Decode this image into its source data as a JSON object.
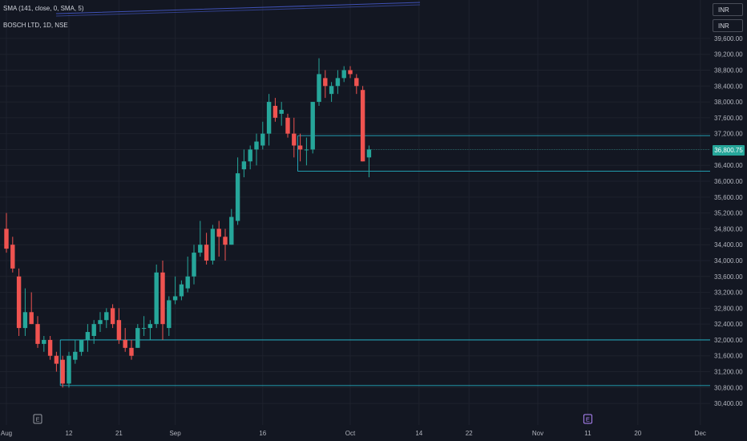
{
  "legend": {
    "sma_text": "SMA (141, close, 0, SMA, 5)",
    "symbol_text": "BOSCH LTD, 1D, NSE"
  },
  "currency_boxes": [
    "INR",
    "INR"
  ],
  "last_price_label": "36,800.75",
  "colors": {
    "background": "#131722",
    "up": "#26a69a",
    "down": "#ef5350",
    "level_lines": "#26c6da",
    "sma_line": "#3f51b5",
    "grid": "#1e222d",
    "event_marker": "#b388ff"
  },
  "chart_data": {
    "type": "candlestick",
    "title": "BOSCH LTD, 1D, NSE",
    "ylim": [
      30200,
      39800
    ],
    "y_ticks": [
      39600,
      39200,
      38800,
      38400,
      38000,
      37600,
      37200,
      36800,
      36400,
      36000,
      35600,
      35200,
      34800,
      34400,
      34000,
      33600,
      33200,
      32800,
      32400,
      32000,
      31600,
      31200,
      30800,
      30400
    ],
    "y_tick_labels": [
      "39,600.00",
      "39,200.00",
      "38,800.00",
      "38,400.00",
      "38,000.00",
      "37,600.00",
      "37,200.00",
      "36,800.00",
      "36,400.00",
      "36,000.00",
      "35,600.00",
      "35,200.00",
      "34,800.00",
      "34,400.00",
      "34,000.00",
      "33,600.00",
      "33,200.00",
      "32,800.00",
      "32,400.00",
      "32,000.00",
      "31,600.00",
      "31,200.00",
      "30,800.00",
      "30,400.00"
    ],
    "x_tick_labels": [
      {
        "label": "Aug",
        "index": 0
      },
      {
        "label": "12",
        "index": 10
      },
      {
        "label": "21",
        "index": 18
      },
      {
        "label": "Sep",
        "index": 27
      },
      {
        "label": "16",
        "index": 41
      },
      {
        "label": "Oct",
        "index": 55
      },
      {
        "label": "14",
        "index": 66
      },
      {
        "label": "22",
        "index": 74
      },
      {
        "label": "Nov",
        "index": 85
      },
      {
        "label": "11",
        "index": 93
      },
      {
        "label": "20",
        "index": 101
      },
      {
        "label": "Dec",
        "index": 111
      }
    ],
    "candles": [
      {
        "o": 34800,
        "h": 35200,
        "l": 34200,
        "c": 34300
      },
      {
        "o": 34400,
        "h": 34600,
        "l": 33700,
        "c": 33800
      },
      {
        "o": 33600,
        "h": 33800,
        "l": 32100,
        "c": 32300
      },
      {
        "o": 32300,
        "h": 33300,
        "l": 32100,
        "c": 32700
      },
      {
        "o": 32700,
        "h": 33200,
        "l": 32400,
        "c": 32400
      },
      {
        "o": 32400,
        "h": 32600,
        "l": 31800,
        "c": 31900
      },
      {
        "o": 31900,
        "h": 32100,
        "l": 31700,
        "c": 32000
      },
      {
        "o": 32000,
        "h": 32100,
        "l": 31500,
        "c": 31600
      },
      {
        "o": 31600,
        "h": 31700,
        "l": 31200,
        "c": 31400
      },
      {
        "o": 31500,
        "h": 31600,
        "l": 30800,
        "c": 30900
      },
      {
        "o": 30900,
        "h": 31700,
        "l": 30800,
        "c": 31600
      },
      {
        "o": 31500,
        "h": 32000,
        "l": 31400,
        "c": 31700
      },
      {
        "o": 31700,
        "h": 32000,
        "l": 31600,
        "c": 32000
      },
      {
        "o": 32000,
        "h": 32400,
        "l": 31700,
        "c": 32200
      },
      {
        "o": 32100,
        "h": 32500,
        "l": 31900,
        "c": 32400
      },
      {
        "o": 32400,
        "h": 32700,
        "l": 32200,
        "c": 32500
      },
      {
        "o": 32500,
        "h": 32800,
        "l": 32300,
        "c": 32700
      },
      {
        "o": 32800,
        "h": 32900,
        "l": 32300,
        "c": 32400
      },
      {
        "o": 32500,
        "h": 32800,
        "l": 31900,
        "c": 32000
      },
      {
        "o": 32000,
        "h": 32300,
        "l": 31700,
        "c": 31800
      },
      {
        "o": 31800,
        "h": 32000,
        "l": 31500,
        "c": 31600
      },
      {
        "o": 31800,
        "h": 32400,
        "l": 31800,
        "c": 32300
      },
      {
        "o": 32300,
        "h": 32600,
        "l": 32100,
        "c": 32300
      },
      {
        "o": 32300,
        "h": 32500,
        "l": 32000,
        "c": 32400
      },
      {
        "o": 32400,
        "h": 33900,
        "l": 32300,
        "c": 33700
      },
      {
        "o": 33700,
        "h": 34000,
        "l": 32000,
        "c": 32400
      },
      {
        "o": 32300,
        "h": 33100,
        "l": 32100,
        "c": 33000
      },
      {
        "o": 33000,
        "h": 33600,
        "l": 32900,
        "c": 33100
      },
      {
        "o": 33100,
        "h": 33500,
        "l": 33000,
        "c": 33400
      },
      {
        "o": 33300,
        "h": 34100,
        "l": 33200,
        "c": 33600
      },
      {
        "o": 33600,
        "h": 34400,
        "l": 33400,
        "c": 34200
      },
      {
        "o": 34200,
        "h": 35000,
        "l": 34100,
        "c": 34400
      },
      {
        "o": 34400,
        "h": 34700,
        "l": 33900,
        "c": 34000
      },
      {
        "o": 34000,
        "h": 34900,
        "l": 33900,
        "c": 34800
      },
      {
        "o": 34800,
        "h": 35000,
        "l": 34100,
        "c": 34600
      },
      {
        "o": 34600,
        "h": 34800,
        "l": 34000,
        "c": 34400
      },
      {
        "o": 34400,
        "h": 35300,
        "l": 34400,
        "c": 35100
      },
      {
        "o": 35000,
        "h": 36600,
        "l": 34900,
        "c": 36200
      },
      {
        "o": 36300,
        "h": 36800,
        "l": 36100,
        "c": 36500
      },
      {
        "o": 36500,
        "h": 36900,
        "l": 36300,
        "c": 36800
      },
      {
        "o": 36800,
        "h": 37200,
        "l": 36400,
        "c": 37000
      },
      {
        "o": 36900,
        "h": 37500,
        "l": 36800,
        "c": 37200
      },
      {
        "o": 37200,
        "h": 38200,
        "l": 36900,
        "c": 38000
      },
      {
        "o": 37900,
        "h": 38100,
        "l": 37500,
        "c": 37600
      },
      {
        "o": 37700,
        "h": 38000,
        "l": 37400,
        "c": 37800
      },
      {
        "o": 37600,
        "h": 37700,
        "l": 37100,
        "c": 37200
      },
      {
        "o": 37200,
        "h": 37600,
        "l": 36600,
        "c": 36900
      },
      {
        "o": 36900,
        "h": 37200,
        "l": 36500,
        "c": 36800
      },
      {
        "o": 36800,
        "h": 37100,
        "l": 36400,
        "c": 36800
      },
      {
        "o": 36800,
        "h": 38000,
        "l": 36700,
        "c": 38000
      },
      {
        "o": 38000,
        "h": 39100,
        "l": 37900,
        "c": 38700
      },
      {
        "o": 38600,
        "h": 38800,
        "l": 38100,
        "c": 38400
      },
      {
        "o": 38200,
        "h": 38500,
        "l": 38000,
        "c": 38400
      },
      {
        "o": 38400,
        "h": 38800,
        "l": 38200,
        "c": 38600
      },
      {
        "o": 38600,
        "h": 38900,
        "l": 38500,
        "c": 38800
      },
      {
        "o": 38800,
        "h": 38900,
        "l": 38600,
        "c": 38700
      },
      {
        "o": 38600,
        "h": 38700,
        "l": 38200,
        "c": 38400
      },
      {
        "o": 38300,
        "h": 38400,
        "l": 36500,
        "c": 36500
      },
      {
        "o": 36600,
        "h": 36900,
        "l": 36100,
        "c": 36800
      }
    ],
    "horizontal_levels": [
      {
        "price": 37150,
        "from_index": 47
      },
      {
        "price": 36250,
        "from_index": 47
      },
      {
        "price": 32000,
        "from_index": 9
      },
      {
        "price": 30850,
        "from_index": 9
      }
    ],
    "event_markers": [
      {
        "label": "E",
        "index": 5,
        "style": "earnings-past"
      },
      {
        "label": "E",
        "index": 93,
        "style": "earnings-upcoming"
      }
    ]
  }
}
